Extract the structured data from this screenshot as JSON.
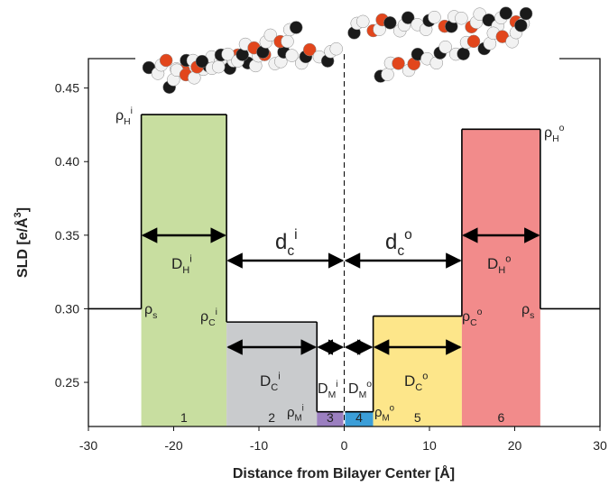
{
  "chart_data": {
    "type": "slab-profile",
    "xlabel": "Distance from Bilayer Center [Å]",
    "ylabel": [
      "SLD [e/Å",
      "3",
      "]"
    ],
    "xlim": [
      -30,
      30
    ],
    "xticks": [
      -30,
      -20,
      -10,
      0,
      10,
      20,
      30
    ],
    "ylim": [
      0.22,
      0.47
    ],
    "yticks": [
      0.25,
      {
        "value": 0.3,
        "label": "0.30"
      },
      0.35,
      {
        "value": 0.4,
        "label": "0.40"
      },
      0.45
    ],
    "solvent_sld": 0.3,
    "slabs": [
      {
        "label": "1",
        "x": [
          -23.8,
          -13.8
        ],
        "value": 0.432,
        "color": "#c8dea0"
      },
      {
        "label": "2",
        "x": [
          -13.8,
          -3.2
        ],
        "value": 0.291,
        "color": "#c9cbcd"
      },
      {
        "label": "3",
        "x": [
          -3.2,
          -0.1
        ],
        "value": 0.23,
        "color": "#9b7fc0"
      },
      {
        "label": "4",
        "x": [
          0.1,
          3.4
        ],
        "value": 0.23,
        "color": "#3b9ed8"
      },
      {
        "label": "5",
        "x": [
          3.4,
          13.8
        ],
        "value": 0.295,
        "color": "#fde68a"
      },
      {
        "label": "6",
        "x": [
          13.8,
          23.0
        ],
        "value": 0.422,
        "color": "#f28b8b"
      }
    ],
    "annotations": [
      {
        "base": "ρ",
        "sub": "H",
        "sup": "i"
      },
      {
        "base": "ρ",
        "sub": "s"
      },
      {
        "base": "ρ",
        "sub": "C",
        "sup": "i"
      },
      {
        "base": "ρ",
        "sub": "M",
        "sup": "i"
      },
      {
        "base": "ρ",
        "sub": "M",
        "sup": "o"
      },
      {
        "base": "ρ",
        "sub": "C",
        "sup": "o"
      },
      {
        "base": "ρ",
        "sub": "s"
      },
      {
        "base": "ρ",
        "sub": "H",
        "sup": "o"
      },
      {
        "base": "D",
        "sub": "H",
        "sup": "i"
      },
      {
        "base": "d",
        "sub": "c",
        "sup": "i"
      },
      {
        "base": "d",
        "sub": "c",
        "sup": "o"
      },
      {
        "base": "D",
        "sub": "H",
        "sup": "o"
      },
      {
        "base": "D",
        "sub": "C",
        "sup": "i"
      },
      {
        "base": "D",
        "sub": "M",
        "sup": "i"
      },
      {
        "base": "D",
        "sub": "M",
        "sup": "o"
      },
      {
        "base": "D",
        "sub": "C",
        "sup": "o"
      }
    ]
  }
}
